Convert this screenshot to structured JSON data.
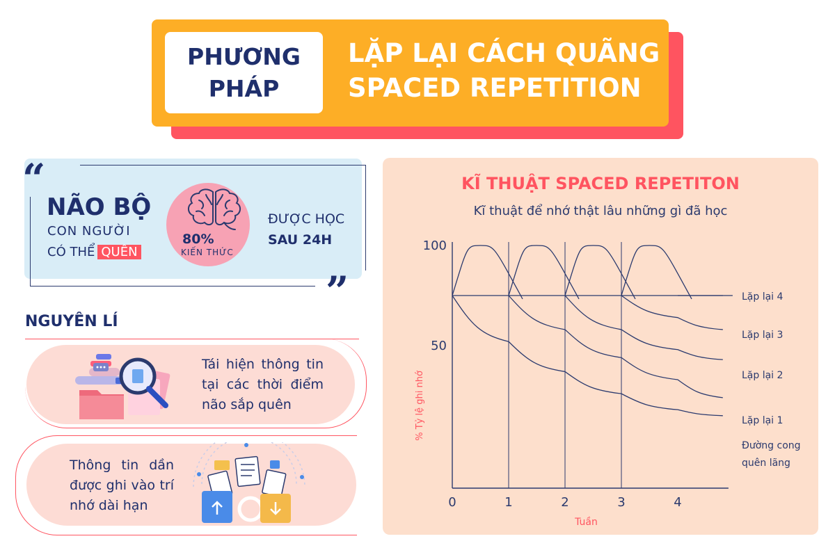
{
  "header": {
    "box_line1": "PHƯƠNG",
    "box_line2": "PHÁP",
    "title_line1": "LẶP LẠI CÁCH QUÃNG",
    "title_line2": "SPACED REPETITION"
  },
  "quote": {
    "open_mark": "“",
    "close_mark": "”",
    "title": "NÃO BỘ",
    "line2": "CON NGƯỜI",
    "line3": "CÓ THỂ",
    "highlight": "QUÊN",
    "percent": "80%",
    "percent_label": "KIẾN THỨC",
    "learn_line1": "ĐƯỢC HỌC",
    "learn_line2": "SAU 24H"
  },
  "principles": {
    "heading": "NGUYÊN LÍ",
    "item1": "Tái hiện thông tin tại các thời điểm não sắp quên",
    "item2": "Thông tin dần được ghi vào trí nhớ dài hạn"
  },
  "chart_data": {
    "type": "line",
    "title": "KĨ THUẬT SPACED REPETITON",
    "subtitle": "Kĩ thuật để nhớ thật lâu những gì đã học",
    "xlabel": "Tuần",
    "ylabel": "% Tỷ lệ ghi nhớ",
    "x_ticks": [
      "0",
      "1",
      "2",
      "3",
      "4"
    ],
    "y_ticks": [
      "100",
      "50"
    ],
    "y_tick_values": [
      100,
      50
    ],
    "xlim": [
      0,
      4.9
    ],
    "ylim": [
      0,
      100
    ],
    "repeat_times": [
      0,
      1,
      2,
      3
    ],
    "start_level": 75,
    "peak_level": 100,
    "series": [
      {
        "name": "Đường cong quên lãng",
        "x": [
          0,
          1,
          2,
          3,
          4,
          4.8
        ],
        "y": [
          75,
          52,
          37,
          26,
          18,
          15
        ]
      },
      {
        "name": "Lặp lại 1",
        "x": [
          1,
          2,
          3,
          4,
          4.8
        ],
        "y": [
          75,
          58,
          44,
          33,
          24
        ]
      },
      {
        "name": "Lặp lại 2",
        "x": [
          2,
          3,
          4,
          4.8
        ],
        "y": [
          75,
          58,
          48,
          43
        ]
      },
      {
        "name": "Lặp lại 3",
        "x": [
          3,
          4,
          4.8
        ],
        "y": [
          75,
          64,
          58
        ]
      },
      {
        "name": "Lặp lại 4",
        "x": [
          4,
          4.8
        ],
        "y": [
          75,
          75
        ]
      }
    ],
    "legend_labels": [
      "Lặp lại 4",
      "Lặp lại 3",
      "Lặp lại 2",
      "Lặp lại 1",
      "Đường cong",
      "quên lãng"
    ],
    "colors": {
      "line": "#2b3a6e",
      "accent": "#ff5460"
    }
  }
}
